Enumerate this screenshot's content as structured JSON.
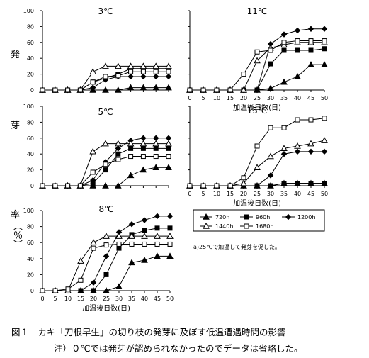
{
  "figure": {
    "ylabel_chars": [
      "発",
      "芽",
      "率"
    ],
    "ylabel_unit": "（％）",
    "caption": "図１　カキ「刀根早生」の切り枝の発芽に及ぼす低温遭遇時間の影響",
    "note": "注）０℃では発芽が認められなかったのでデータは省略した。",
    "legend_title": "",
    "legend_note": "a)25℃で加温して発芽を促した。"
  },
  "chart_data": [
    {
      "type": "line",
      "title": "3℃",
      "xlabel": "",
      "ylabel": "",
      "x": [
        0,
        5,
        10,
        15,
        20,
        25,
        30,
        35,
        40,
        45,
        50
      ],
      "xlim": [
        0,
        50
      ],
      "ylim": [
        0,
        100
      ],
      "yticks": [
        0,
        20,
        40,
        60,
        80,
        100
      ],
      "series": [
        {
          "name": "720h",
          "marker": "filled-triangle",
          "values": [
            0,
            0,
            0,
            0,
            0,
            0,
            0,
            3,
            3,
            3,
            3
          ]
        },
        {
          "name": "960h",
          "marker": "filled-square",
          "values": [
            0,
            0,
            0,
            0,
            10,
            15,
            20,
            27,
            27,
            27,
            27
          ]
        },
        {
          "name": "1200h",
          "marker": "filled-diamond",
          "values": [
            0,
            0,
            0,
            0,
            3,
            13,
            17,
            17,
            17,
            17,
            17
          ]
        },
        {
          "name": "1440h",
          "marker": "open-triangle",
          "values": [
            0,
            0,
            0,
            0,
            23,
            30,
            30,
            30,
            30,
            30,
            30
          ]
        },
        {
          "name": "1680h",
          "marker": "open-square",
          "values": [
            0,
            0,
            0,
            0,
            10,
            17,
            18,
            23,
            23,
            23,
            23
          ]
        }
      ]
    },
    {
      "type": "line",
      "title": "11℃",
      "xlabel": "加温後日数(日)",
      "ylabel": "",
      "x": [
        0,
        5,
        10,
        15,
        20,
        25,
        30,
        35,
        40,
        45,
        50
      ],
      "xlim": [
        0,
        50
      ],
      "ylim": [
        0,
        100
      ],
      "yticks": [
        0,
        20,
        40,
        60,
        80,
        100
      ],
      "series": [
        {
          "name": "720h",
          "marker": "filled-triangle",
          "values": [
            0,
            0,
            0,
            0,
            0,
            0,
            2,
            10,
            17,
            32,
            32
          ]
        },
        {
          "name": "960h",
          "marker": "filled-square",
          "values": [
            0,
            0,
            0,
            0,
            0,
            0,
            33,
            50,
            50,
            50,
            52
          ]
        },
        {
          "name": "1200h",
          "marker": "filled-diamond",
          "values": [
            0,
            0,
            0,
            0,
            0,
            0,
            58,
            70,
            75,
            77,
            77
          ]
        },
        {
          "name": "1440h",
          "marker": "open-triangle",
          "values": [
            0,
            0,
            0,
            0,
            0,
            37,
            53,
            57,
            60,
            60,
            60
          ]
        },
        {
          "name": "1680h",
          "marker": "open-square",
          "values": [
            0,
            0,
            0,
            0,
            20,
            48,
            50,
            60,
            62,
            62,
            62
          ]
        }
      ]
    },
    {
      "type": "line",
      "title": "5℃",
      "xlabel": "",
      "ylabel": "",
      "x": [
        0,
        5,
        10,
        15,
        20,
        25,
        30,
        35,
        40,
        45,
        50
      ],
      "xlim": [
        0,
        50
      ],
      "ylim": [
        0,
        100
      ],
      "yticks": [
        0,
        20,
        40,
        60,
        80,
        100
      ],
      "series": [
        {
          "name": "720h",
          "marker": "filled-triangle",
          "values": [
            0,
            0,
            0,
            0,
            0,
            0,
            0,
            13,
            20,
            23,
            23
          ]
        },
        {
          "name": "960h",
          "marker": "filled-square",
          "values": [
            0,
            0,
            0,
            0,
            3,
            20,
            40,
            47,
            47,
            47,
            47
          ]
        },
        {
          "name": "1200h",
          "marker": "filled-diamond",
          "values": [
            0,
            0,
            0,
            0,
            7,
            30,
            47,
            57,
            60,
            60,
            60
          ]
        },
        {
          "name": "1440h",
          "marker": "open-triangle",
          "values": [
            0,
            0,
            0,
            0,
            43,
            53,
            53,
            53,
            53,
            53,
            53
          ]
        },
        {
          "name": "1680h",
          "marker": "open-square",
          "values": [
            0,
            0,
            0,
            0,
            17,
            27,
            33,
            37,
            37,
            37,
            37
          ]
        }
      ]
    },
    {
      "type": "line",
      "title": "15℃",
      "xlabel": "加温後日数(日)",
      "ylabel": "",
      "x": [
        0,
        5,
        10,
        15,
        20,
        25,
        30,
        35,
        40,
        45,
        50
      ],
      "xlim": [
        0,
        50
      ],
      "ylim": [
        0,
        100
      ],
      "yticks": [
        0,
        20,
        40,
        60,
        80,
        100
      ],
      "series": [
        {
          "name": "720h",
          "marker": "filled-triangle",
          "values": [
            0,
            0,
            0,
            0,
            0,
            0,
            0,
            3,
            3,
            3,
            3
          ]
        },
        {
          "name": "960h",
          "marker": "filled-square",
          "values": [
            0,
            0,
            0,
            0,
            0,
            0,
            0,
            3,
            3,
            3,
            3
          ]
        },
        {
          "name": "1200h",
          "marker": "filled-diamond",
          "values": [
            0,
            0,
            0,
            0,
            0,
            0,
            13,
            40,
            43,
            43,
            43
          ]
        },
        {
          "name": "1440h",
          "marker": "open-triangle",
          "values": [
            0,
            0,
            0,
            0,
            3,
            23,
            37,
            47,
            50,
            53,
            57
          ]
        },
        {
          "name": "1680h",
          "marker": "open-square",
          "values": [
            0,
            0,
            0,
            0,
            10,
            50,
            73,
            73,
            83,
            83,
            85
          ]
        }
      ]
    },
    {
      "type": "line",
      "title": "8℃",
      "xlabel": "加温後日数(日)",
      "ylabel": "",
      "x": [
        0,
        5,
        10,
        15,
        20,
        25,
        30,
        35,
        40,
        45,
        50
      ],
      "xlim": [
        0,
        50
      ],
      "ylim": [
        0,
        100
      ],
      "yticks": [
        0,
        20,
        40,
        60,
        80,
        100
      ],
      "series": [
        {
          "name": "720h",
          "marker": "filled-triangle",
          "values": [
            0,
            0,
            0,
            0,
            0,
            0,
            5,
            35,
            38,
            43,
            43
          ]
        },
        {
          "name": "960h",
          "marker": "filled-square",
          "values": [
            0,
            0,
            0,
            0,
            0,
            20,
            53,
            70,
            75,
            78,
            78
          ]
        },
        {
          "name": "1200h",
          "marker": "filled-diamond",
          "values": [
            0,
            0,
            0,
            0,
            10,
            43,
            73,
            83,
            88,
            93,
            93
          ]
        },
        {
          "name": "1440h",
          "marker": "open-triangle",
          "values": [
            0,
            0,
            0,
            37,
            60,
            68,
            68,
            68,
            68,
            68,
            68
          ]
        },
        {
          "name": "1680h",
          "marker": "open-square",
          "values": [
            0,
            0,
            2,
            13,
            53,
            57,
            58,
            58,
            58,
            58,
            58
          ]
        }
      ]
    }
  ]
}
